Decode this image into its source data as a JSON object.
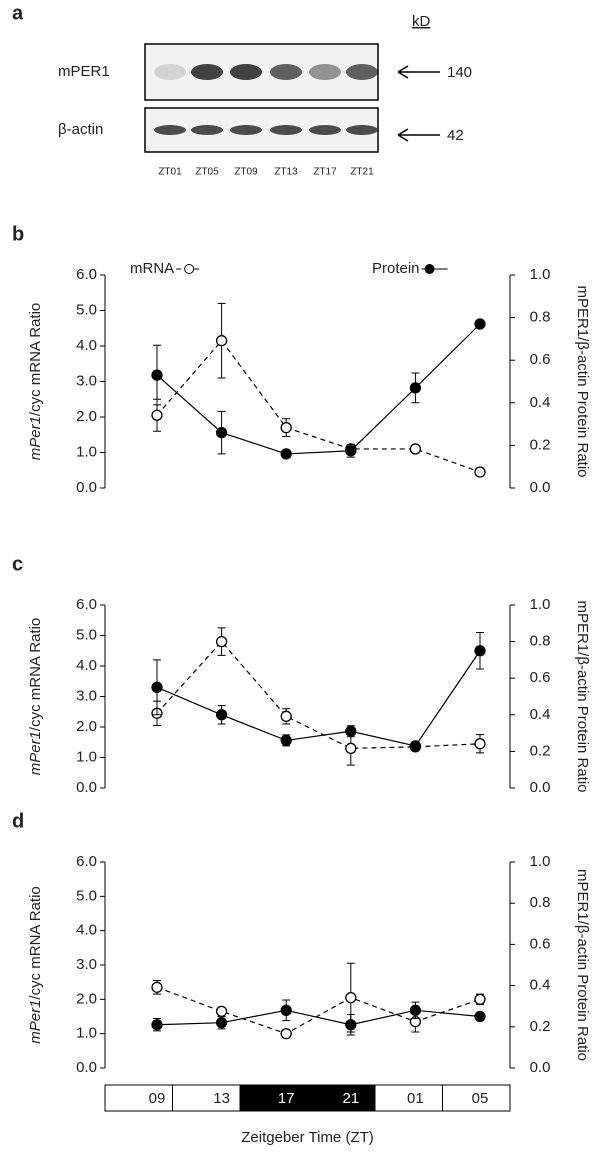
{
  "blot": {
    "label": "a",
    "unit": "kD",
    "lanes": [
      "ZT01",
      "ZT05",
      "ZT09",
      "ZT13",
      "ZT17",
      "ZT21"
    ],
    "rows": [
      {
        "name": "mPER1",
        "size": 140
      },
      {
        "name": "β-actin",
        "size": 42
      }
    ]
  },
  "chart_data": [
    {
      "type": "line",
      "label": "b",
      "legend": true,
      "categories": [
        null,
        null,
        null,
        null,
        null,
        null
      ],
      "ylabel_italic": "mPer1",
      "ylabel": "/cyc mRNA Ratio",
      "y2label": "mPER1/β-actin Protein Ratio",
      "ylim": [
        0,
        6
      ],
      "yticks": [
        {
          "value": 0,
          "label": "0.0"
        },
        {
          "value": 1,
          "label": "1.0"
        },
        {
          "value": 2,
          "label": "2.0"
        },
        {
          "value": 3,
          "label": "3.0"
        },
        {
          "value": 4,
          "label": "4.0"
        },
        {
          "value": 5,
          "label": "5.0"
        },
        {
          "value": 6,
          "label": "6.0"
        }
      ],
      "y2lim": [
        0,
        1
      ],
      "y2ticks": [
        {
          "value": 0,
          "label": "0.0"
        },
        0.2,
        0.4,
        0.6,
        0.8,
        {
          "value": 1,
          "label": "1.0"
        }
      ],
      "series": [
        {
          "name": "mRNA",
          "color": "#000000",
          "marker": "open",
          "dash": true,
          "values": [
            2.05,
            4.15,
            1.7,
            1.1,
            1.1,
            0.45
          ],
          "errors": [
            0.45,
            1.05,
            0.25,
            0.1,
            0.1,
            0.08
          ]
        },
        {
          "name": "Protein",
          "color": "#000000",
          "marker": "filled",
          "dash": false,
          "axis": "y2",
          "values": [
            0.53,
            0.26,
            0.16,
            0.175,
            0.47,
            0.77
          ],
          "errors": [
            0.14,
            0.1,
            0.01,
            0.03,
            0.07,
            0.015
          ]
        }
      ]
    },
    {
      "type": "line",
      "label": "c",
      "legend": false,
      "categories": [
        null,
        null,
        null,
        null,
        null,
        null
      ],
      "ylabel_italic": "mPer1",
      "ylabel": "/cyc mRNA Ratio",
      "y2label": "mPER1/β-actin Protein Ratio",
      "ylim": [
        0,
        6
      ],
      "yticks": [
        {
          "value": 0,
          "label": "0.0"
        },
        {
          "value": 1,
          "label": "1.0"
        },
        {
          "value": 2,
          "label": "2.0"
        },
        {
          "value": 3,
          "label": "3.0"
        },
        {
          "value": 4,
          "label": "4.0"
        },
        {
          "value": 5,
          "label": "5.0"
        },
        {
          "value": 6,
          "label": "6.0"
        }
      ],
      "y2lim": [
        0,
        1
      ],
      "y2ticks": [
        {
          "value": 0,
          "label": "0.0"
        },
        0.2,
        0.4,
        0.6,
        0.8,
        {
          "value": 1,
          "label": "1.0"
        }
      ],
      "series": [
        {
          "color": "#000000",
          "marker": "open",
          "dash": true,
          "values": [
            2.45,
            4.8,
            2.35,
            1.3,
            1.35,
            1.45
          ],
          "errors": [
            0.4,
            0.45,
            0.25,
            0.55,
            0.1,
            0.3
          ]
        },
        {
          "color": "#000000",
          "marker": "filled",
          "dash": false,
          "axis": "y2",
          "values": [
            0.55,
            0.4,
            0.26,
            0.31,
            0.23,
            0.75
          ],
          "errors": [
            0.15,
            0.05,
            0.03,
            0.03,
            0.02,
            0.1
          ]
        }
      ]
    },
    {
      "type": "line",
      "label": "d",
      "legend": false,
      "categories": [
        "09",
        "13",
        "17",
        "21",
        "01",
        "05"
      ],
      "dark_phase": [
        false,
        false,
        true,
        true,
        false,
        false
      ],
      "xlabel": "Zeitgeber Time (ZT)",
      "ylabel_italic": "mPer1",
      "ylabel": "/cyc mRNA Ratio",
      "y2label": "mPER1/β-actin Protein Ratio",
      "ylim": [
        0,
        6
      ],
      "yticks": [
        {
          "value": 0,
          "label": "0.0"
        },
        {
          "value": 1,
          "label": "1.0"
        },
        {
          "value": 2,
          "label": "2.0"
        },
        {
          "value": 3,
          "label": "3.0"
        },
        {
          "value": 4,
          "label": "4.0"
        },
        {
          "value": 5,
          "label": "5.0"
        },
        {
          "value": 6,
          "label": "6.0"
        }
      ],
      "y2lim": [
        0,
        1
      ],
      "y2ticks": [
        {
          "value": 0,
          "label": "0.0"
        },
        0.2,
        0.4,
        0.6,
        0.8,
        {
          "value": 1,
          "label": "1.0"
        }
      ],
      "series": [
        {
          "color": "#000000",
          "marker": "open",
          "dash": true,
          "values": [
            2.35,
            1.65,
            1.0,
            2.05,
            1.35,
            2.0
          ],
          "errors": [
            0.2,
            0.1,
            0.1,
            1.0,
            0.3,
            0.15
          ]
        },
        {
          "color": "#000000",
          "marker": "filled",
          "dash": false,
          "axis": "y2",
          "values": [
            0.21,
            0.22,
            0.28,
            0.21,
            0.28,
            0.25
          ],
          "errors": [
            0.03,
            0.03,
            0.05,
            0.05,
            0.04,
            0.01
          ]
        }
      ]
    }
  ]
}
